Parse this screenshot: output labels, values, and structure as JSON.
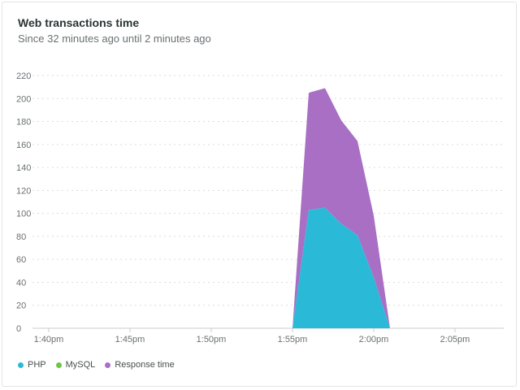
{
  "header": {
    "title": "Web transactions time",
    "subtitle": "Since 32 minutes ago until 2 minutes ago"
  },
  "colors": {
    "php": "#2bb9d8",
    "mysql": "#6cc644",
    "response": "#a86fc4",
    "grid": "#d9dcdc",
    "tick_text": "#6b6f72"
  },
  "legend": [
    {
      "label": "PHP",
      "color": "#2bb9d8"
    },
    {
      "label": "MySQL",
      "color": "#6cc644"
    },
    {
      "label": "Response time",
      "color": "#a86fc4"
    }
  ],
  "chart_data": {
    "type": "area",
    "title": "Web transactions time",
    "subtitle": "Since 32 minutes ago until 2 minutes ago",
    "x_ticks": [
      "1:40pm",
      "1:45pm",
      "1:50pm",
      "1:55pm",
      "2:00pm",
      "2:05pm"
    ],
    "y_ticks": [
      0,
      20,
      40,
      60,
      80,
      100,
      120,
      140,
      160,
      180,
      200,
      220
    ],
    "ylim": [
      0,
      220
    ],
    "xlim": [
      "1:39pm",
      "2:08pm"
    ],
    "grid": true,
    "stacked": true,
    "legend_position": "bottom-left",
    "x": [
      "1:55pm",
      "1:56pm",
      "1:57pm",
      "1:58pm",
      "1:59pm",
      "2:00pm",
      "2:01pm"
    ],
    "series": [
      {
        "name": "PHP",
        "values": [
          0,
          103,
          105,
          91,
          81,
          44,
          0
        ]
      },
      {
        "name": "MySQL",
        "values": [
          0,
          0,
          0,
          0,
          0,
          0,
          0
        ]
      },
      {
        "name": "Response time",
        "values": [
          0,
          102,
          104,
          90,
          82,
          54,
          0
        ]
      }
    ]
  }
}
